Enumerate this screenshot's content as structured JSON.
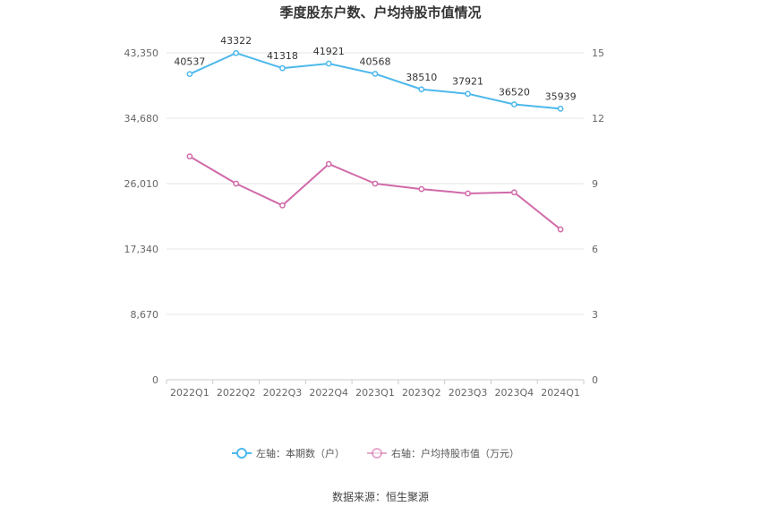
{
  "chart_data": {
    "type": "line",
    "title": "季度股东户数、户均持股市值情况",
    "categories": [
      "2022Q1",
      "2022Q2",
      "2022Q3",
      "2022Q4",
      "2023Q1",
      "2023Q2",
      "2023Q3",
      "2023Q4",
      "2024Q1"
    ],
    "left_axis": {
      "ticks": [
        "0",
        "8,670",
        "17,340",
        "26,010",
        "34,680",
        "43,350"
      ],
      "range": [
        0,
        43350
      ]
    },
    "right_axis": {
      "ticks": [
        "0",
        "3",
        "6",
        "9",
        "12",
        "15"
      ],
      "range": [
        0,
        15
      ]
    },
    "series": [
      {
        "name": "左轴：本期数（户）",
        "axis": "left",
        "color": "#4db8ec",
        "values": [
          40537,
          43322,
          41318,
          41921,
          40568,
          38510,
          37921,
          36520,
          35939
        ],
        "labels": [
          "40537",
          "43322",
          "41318",
          "41921",
          "40568",
          "38510",
          "37921",
          "36520",
          "35939"
        ]
      },
      {
        "name": "右轴：户均持股市值（万元）",
        "axis": "right",
        "color": "#d06aa9",
        "values": [
          10.25,
          9.0,
          8.0,
          9.9,
          9.0,
          8.75,
          8.55,
          8.6,
          6.9
        ]
      }
    ],
    "grid": true,
    "legend_position": "bottom"
  },
  "footer": {
    "source": "数据来源：恒生聚源"
  }
}
